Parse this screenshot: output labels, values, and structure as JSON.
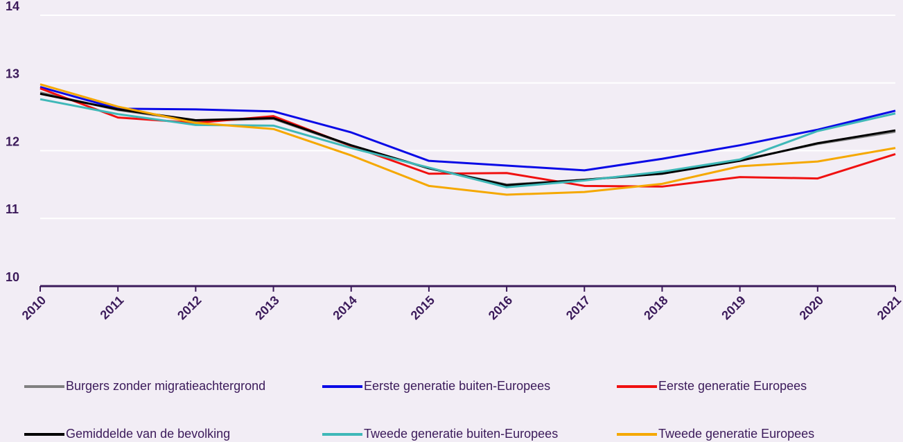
{
  "chart_data": {
    "type": "line",
    "categories": [
      "2010",
      "2011",
      "2012",
      "2013",
      "2014",
      "2015",
      "2016",
      "2017",
      "2018",
      "2019",
      "2020",
      "2021"
    ],
    "ylim": [
      10,
      14
    ],
    "yticks": [
      10,
      11,
      12,
      13,
      14
    ],
    "grid": true,
    "series": [
      {
        "name": "Burgers zonder migratieachtergrond",
        "color": "#808080",
        "values": [
          12.86,
          12.6,
          12.44,
          12.47,
          12.07,
          11.74,
          11.5,
          11.57,
          11.67,
          11.86,
          12.1,
          12.28
        ]
      },
      {
        "name": "Eerste generatie buiten-Europees",
        "color": "#0a0ae6",
        "values": [
          12.94,
          12.62,
          12.61,
          12.58,
          12.27,
          11.85,
          11.78,
          11.71,
          11.88,
          12.08,
          12.31,
          12.59
        ]
      },
      {
        "name": "Eerste generatie Europees",
        "color": "#f01010",
        "values": [
          12.92,
          12.49,
          12.41,
          12.51,
          12.07,
          11.66,
          11.67,
          11.48,
          11.47,
          11.61,
          11.59,
          11.95
        ]
      },
      {
        "name": "Gemiddelde van de bevolking",
        "color": "#000000",
        "values": [
          12.84,
          12.61,
          12.45,
          12.48,
          12.08,
          11.74,
          11.49,
          11.57,
          11.66,
          11.85,
          12.11,
          12.3
        ]
      },
      {
        "name": "Tweede generatie buiten-Europees",
        "color": "#3fb8b8",
        "values": [
          12.76,
          12.54,
          12.38,
          12.37,
          12.04,
          11.75,
          11.46,
          11.56,
          11.69,
          11.87,
          12.29,
          12.55
        ]
      },
      {
        "name": "Tweede generatie Europees",
        "color": "#f5a800",
        "values": [
          12.98,
          12.65,
          12.41,
          12.32,
          11.93,
          11.48,
          11.35,
          11.39,
          11.51,
          11.77,
          11.84,
          12.04
        ]
      }
    ]
  }
}
